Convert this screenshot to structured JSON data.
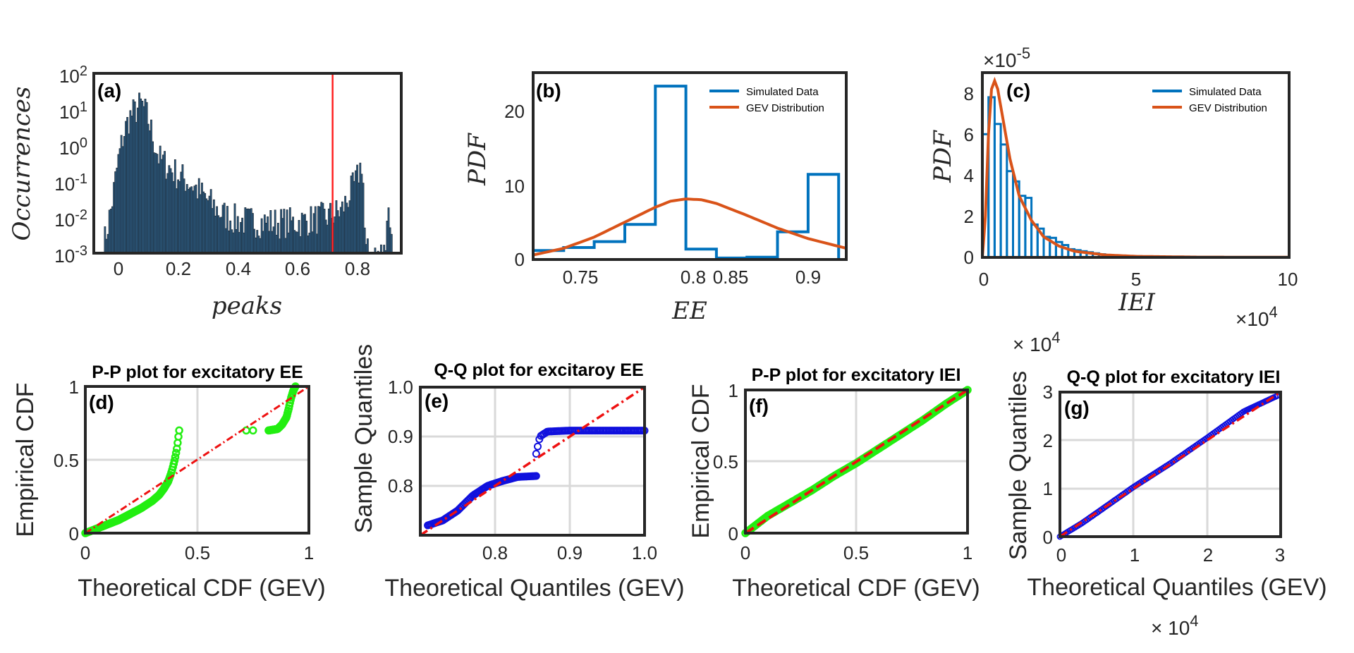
{
  "colors": {
    "hist_bar": "#2e5f86",
    "hist_edge": "#1b2530",
    "threshold": "#ff2020",
    "sim": "#0072BD",
    "gev": "#D95319",
    "green": "#22ee11",
    "blue": "#1010dd",
    "ref": "#ee1111"
  },
  "chart_data": [
    {
      "id": "a",
      "type": "bar",
      "panel_label": "(a)",
      "xlabel": "peaks",
      "ylabel": "Occurrences",
      "yscale": "log",
      "xlim": [
        -0.08,
        0.95
      ],
      "ylim": [
        0.001,
        100
      ],
      "xticks": [
        "0",
        "0.2",
        "0.4",
        "0.6",
        "0.8"
      ],
      "yticks": [
        {
          "b": "10",
          "e": "2"
        },
        {
          "b": "10",
          "e": "1"
        },
        {
          "b": "10",
          "e": "0"
        },
        {
          "b": "10",
          "e": "-1"
        },
        {
          "b": "10",
          "e": "-2"
        },
        {
          "b": "10",
          "e": "-3"
        }
      ],
      "threshold_x": 0.72,
      "bin_width": 0.005,
      "envelope": [
        [
          -0.05,
          0.001
        ],
        [
          -0.04,
          0.003
        ],
        [
          -0.02,
          0.02
        ],
        [
          0.0,
          0.3
        ],
        [
          0.02,
          2
        ],
        [
          0.04,
          6
        ],
        [
          0.06,
          9
        ],
        [
          0.08,
          14
        ],
        [
          0.1,
          6
        ],
        [
          0.12,
          1.5
        ],
        [
          0.14,
          0.4
        ],
        [
          0.16,
          0.3
        ],
        [
          0.2,
          0.15
        ],
        [
          0.25,
          0.08
        ],
        [
          0.3,
          0.03
        ],
        [
          0.35,
          0.012
        ],
        [
          0.4,
          0.008
        ],
        [
          0.5,
          0.007
        ],
        [
          0.6,
          0.007
        ],
        [
          0.7,
          0.01
        ],
        [
          0.75,
          0.015
        ],
        [
          0.8,
          0.1
        ],
        [
          0.82,
          0.4
        ],
        [
          0.83,
          0.001
        ],
        [
          0.895,
          0.001
        ],
        [
          0.9,
          0.01
        ],
        [
          0.91,
          0.02
        ],
        [
          0.92,
          0.001
        ]
      ]
    },
    {
      "id": "b",
      "type": "bar",
      "panel_label": "(b)",
      "xlabel": "EE",
      "ylabel": "PDF",
      "xlim": [
        0.72,
        0.925
      ],
      "ylim": [
        0,
        25
      ],
      "xticks": [
        "0.75",
        "0.8",
        "0.85",
        "0.9"
      ],
      "yticks": [
        "0",
        "10",
        "20"
      ],
      "legend": [
        "Simulated Data",
        "GEV Distribution"
      ],
      "bin_edges": [
        0.72,
        0.74,
        0.76,
        0.78,
        0.8,
        0.82,
        0.84,
        0.86,
        0.88,
        0.9,
        0.92
      ],
      "values": [
        1.2,
        1.6,
        2.4,
        4.7,
        23.2,
        1.4,
        0.2,
        0.3,
        3.7,
        11.4
      ],
      "gev_curve": [
        [
          0.72,
          0.6
        ],
        [
          0.74,
          1.5
        ],
        [
          0.76,
          3.0
        ],
        [
          0.78,
          5.0
        ],
        [
          0.8,
          7.0
        ],
        [
          0.81,
          7.8
        ],
        [
          0.82,
          8.1
        ],
        [
          0.83,
          8.0
        ],
        [
          0.84,
          7.5
        ],
        [
          0.86,
          5.9
        ],
        [
          0.88,
          4.2
        ],
        [
          0.9,
          2.8
        ],
        [
          0.925,
          1.5
        ]
      ]
    },
    {
      "id": "c",
      "type": "bar",
      "panel_label": "(c)",
      "xlabel": "IEI",
      "ylabel": "PDF",
      "xlim": [
        0,
        100000
      ],
      "ylim": [
        0,
        9e-05
      ],
      "xticks": [
        "0",
        "5",
        "10"
      ],
      "yticks": [
        "0",
        "2",
        "4",
        "6",
        "8"
      ],
      "x_exponent_label": "×10",
      "x_exponent": "4",
      "y_exponent_label": "×10",
      "y_exponent": "-5",
      "legend": [
        "Simulated Data",
        "GEV Distribution"
      ],
      "bin_width": 2000,
      "values": [
        6.0,
        7.8,
        6.5,
        5.5,
        4.2,
        3.7,
        3.0,
        2.9,
        1.6,
        1.4,
        1.0,
        0.95,
        0.75,
        0.6,
        0.4,
        0.35,
        0.3,
        0.25,
        0.2,
        0.15,
        0.12,
        0.08,
        0.05,
        0.04,
        0.04,
        0.03,
        0.03,
        0.02,
        0.02,
        0.01
      ],
      "values_scale": 1e-05,
      "gev_curve": [
        [
          0,
          0.0
        ],
        [
          1000,
          2.0
        ],
        [
          2000,
          6.0
        ],
        [
          3000,
          8.2
        ],
        [
          4000,
          8.6
        ],
        [
          5000,
          8.2
        ],
        [
          7000,
          6.5
        ],
        [
          9000,
          4.8
        ],
        [
          12000,
          3.0
        ],
        [
          16000,
          1.8
        ],
        [
          20000,
          1.0
        ],
        [
          25000,
          0.55
        ],
        [
          30000,
          0.3
        ],
        [
          40000,
          0.12
        ],
        [
          50000,
          0.05
        ],
        [
          70000,
          0.015
        ],
        [
          100000,
          0.005
        ]
      ],
      "gev_scale": 1e-05
    },
    {
      "id": "d",
      "type": "scatter",
      "panel_label": "(d)",
      "title": "P-P plot for excitatory EE",
      "xlabel": "Theoretical CDF (GEV)",
      "ylabel": "Empirical CDF",
      "xlim": [
        0,
        1
      ],
      "ylim": [
        0,
        1
      ],
      "xticks": [
        "0",
        "0.5",
        "1"
      ],
      "yticks": [
        "0",
        "0.5",
        "1"
      ],
      "grid": true,
      "segments": [
        {
          "points": [
            [
              0.0,
              0.0
            ],
            [
              0.05,
              0.03
            ],
            [
              0.1,
              0.06
            ],
            [
              0.15,
              0.09
            ],
            [
              0.2,
              0.13
            ],
            [
              0.25,
              0.17
            ],
            [
              0.3,
              0.22
            ],
            [
              0.33,
              0.26
            ],
            [
              0.35,
              0.3
            ],
            [
              0.37,
              0.35
            ],
            [
              0.38,
              0.39
            ],
            [
              0.39,
              0.44
            ],
            [
              0.4,
              0.5
            ],
            [
              0.41,
              0.58
            ],
            [
              0.415,
              0.64
            ],
            [
              0.42,
              0.7
            ]
          ],
          "n": 120
        },
        {
          "points": [
            [
              0.72,
              0.7
            ],
            [
              0.75,
              0.7
            ]
          ],
          "n": 2
        },
        {
          "points": [
            [
              0.82,
              0.7
            ],
            [
              0.86,
              0.71
            ],
            [
              0.88,
              0.74
            ],
            [
              0.9,
              0.79
            ],
            [
              0.91,
              0.85
            ],
            [
              0.92,
              0.92
            ],
            [
              0.93,
              0.97
            ],
            [
              0.94,
              1.0
            ]
          ],
          "n": 45
        }
      ],
      "ref_line": [
        [
          0,
          0
        ],
        [
          1,
          1
        ]
      ]
    },
    {
      "id": "e",
      "type": "scatter",
      "panel_label": "(e)",
      "title": "Q-Q plot for excitaroy EE",
      "xlabel": "Theoretical Quantiles (GEV)",
      "ylabel": "Sample Quantiles",
      "xlim": [
        0.7,
        1.0
      ],
      "ylim": [
        0.7,
        1.0
      ],
      "xticks": [
        "0.8",
        "0.9",
        "1.0"
      ],
      "yticks": [
        "0.8",
        "0.9",
        "1.0"
      ],
      "grid": true,
      "segments": [
        {
          "points": [
            [
              0.71,
              0.72
            ],
            [
              0.73,
              0.73
            ],
            [
              0.75,
              0.75
            ],
            [
              0.77,
              0.78
            ],
            [
              0.79,
              0.8
            ],
            [
              0.81,
              0.81
            ],
            [
              0.83,
              0.818
            ],
            [
              0.855,
              0.82
            ]
          ],
          "n": 80
        },
        {
          "points": [
            [
              0.855,
              0.865
            ],
            [
              0.86,
              0.9
            ],
            [
              0.87,
              0.91
            ],
            [
              0.9,
              0.912
            ],
            [
              0.95,
              0.912
            ],
            [
              1.0,
              0.912
            ]
          ],
          "n": 70
        }
      ],
      "ref_line": [
        [
          0.7,
          0.7
        ],
        [
          1.0,
          1.0
        ]
      ]
    },
    {
      "id": "f",
      "type": "scatter",
      "panel_label": "(f)",
      "title": "P-P plot for excitatory IEI",
      "xlabel": "Theoretical CDF (GEV)",
      "ylabel": "Empirical CDF",
      "xlim": [
        0,
        1
      ],
      "ylim": [
        0,
        1
      ],
      "xticks": [
        "0",
        "0.5",
        "1"
      ],
      "yticks": [
        "0",
        "0.5",
        "1"
      ],
      "grid": true,
      "segments": [
        {
          "points": [
            [
              0.0,
              0.0
            ],
            [
              0.05,
              0.06
            ],
            [
              0.1,
              0.12
            ],
            [
              0.2,
              0.21
            ],
            [
              0.3,
              0.3
            ],
            [
              0.4,
              0.4
            ],
            [
              0.5,
              0.49
            ],
            [
              0.6,
              0.59
            ],
            [
              0.7,
              0.69
            ],
            [
              0.8,
              0.79
            ],
            [
              0.9,
              0.9
            ],
            [
              1.0,
              1.0
            ]
          ],
          "n": 140
        }
      ],
      "ref_line": [
        [
          0,
          0
        ],
        [
          1,
          1
        ]
      ]
    },
    {
      "id": "g",
      "type": "scatter",
      "panel_label": "(g)",
      "title": "Q-Q plot for excitatory IEI",
      "xlabel": "Theoretical Quantiles (GEV)",
      "ylabel": "Sample Quantiles",
      "xlim": [
        0,
        30000
      ],
      "ylim": [
        0,
        30000
      ],
      "xticks": [
        "0",
        "1",
        "2",
        "3"
      ],
      "yticks": [
        "0",
        "1",
        "2",
        "3"
      ],
      "x_exponent_label": "× 10",
      "x_exponent": "4",
      "y_exponent_label": "× 10",
      "y_exponent": "4",
      "grid": true,
      "segments": [
        {
          "points": [
            [
              0,
              0
            ],
            [
              3000,
              2800
            ],
            [
              6000,
              6000
            ],
            [
              10000,
              10300
            ],
            [
              15000,
              15200
            ],
            [
              20000,
              20500
            ],
            [
              25000,
              26000
            ],
            [
              29500,
              29200
            ]
          ],
          "n": 130
        }
      ],
      "ref_line": [
        [
          0,
          0
        ],
        [
          30000,
          30000
        ]
      ]
    }
  ]
}
